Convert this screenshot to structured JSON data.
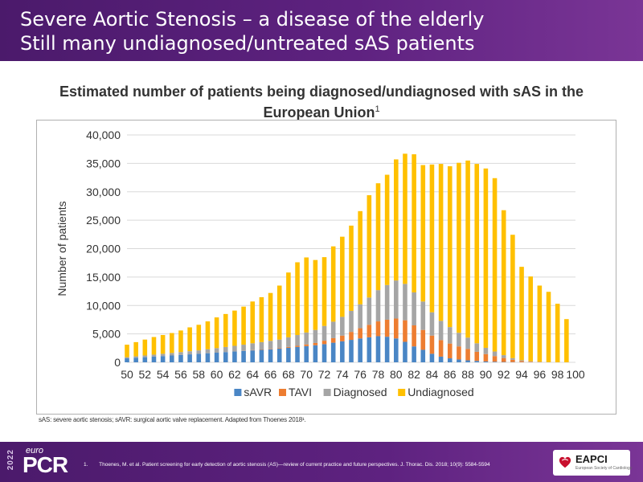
{
  "header": {
    "line1": "Severe Aortic Stenosis – a disease of the elderly",
    "line2": "Still many undiagnosed/untreated sAS patients"
  },
  "subtitle": {
    "line1": "Estimated number of patients being diagnosed/undiagnosed with sAS in the",
    "line2": "European Union",
    "sup": "1"
  },
  "chart_data": {
    "type": "bar",
    "stacked": true,
    "x": [
      50,
      51,
      52,
      53,
      54,
      55,
      56,
      57,
      58,
      59,
      60,
      61,
      62,
      63,
      64,
      65,
      66,
      67,
      68,
      69,
      70,
      71,
      72,
      73,
      74,
      75,
      76,
      77,
      78,
      79,
      80,
      81,
      82,
      83,
      84,
      85,
      86,
      87,
      88,
      89,
      90,
      91,
      92,
      93,
      94,
      95,
      96,
      97,
      98,
      99
    ],
    "x_tick_labels": [
      "50",
      "52",
      "54",
      "56",
      "58",
      "60",
      "62",
      "64",
      "66",
      "68",
      "70",
      "72",
      "74",
      "76",
      "78",
      "80",
      "82",
      "84",
      "86",
      "88",
      "90",
      "92",
      "94",
      "96",
      "98",
      "100"
    ],
    "x_tick_values": [
      50,
      52,
      54,
      56,
      58,
      60,
      62,
      64,
      66,
      68,
      70,
      72,
      74,
      76,
      78,
      80,
      82,
      84,
      86,
      88,
      90,
      92,
      94,
      96,
      98,
      100
    ],
    "ylabel": "Number of patients",
    "ylim": [
      0,
      40000
    ],
    "y_ticks": [
      0,
      5000,
      10000,
      15000,
      20000,
      25000,
      30000,
      35000,
      40000
    ],
    "y_tick_labels": [
      "0",
      "5,000",
      "10,000",
      "15,000",
      "20,000",
      "25,000",
      "30,000",
      "35,000",
      "40,000"
    ],
    "grid": true,
    "legend_position": "bottom",
    "series": [
      {
        "name": "sAVR",
        "color": "#4a86c5",
        "values": [
          700,
          800,
          900,
          1000,
          1100,
          1200,
          1300,
          1400,
          1500,
          1600,
          1700,
          1800,
          1900,
          2000,
          2100,
          2200,
          2300,
          2400,
          2550,
          2700,
          2850,
          3000,
          3200,
          3450,
          3700,
          3950,
          4200,
          4400,
          4600,
          4500,
          4200,
          3600,
          2800,
          2200,
          1500,
          1000,
          700,
          500,
          350,
          250,
          150,
          100,
          60,
          40,
          20,
          10,
          0,
          0,
          0,
          0
        ]
      },
      {
        "name": "TAVI",
        "color": "#ed7d31",
        "values": [
          0,
          0,
          0,
          0,
          0,
          0,
          0,
          0,
          0,
          0,
          0,
          0,
          0,
          0,
          50,
          60,
          80,
          100,
          150,
          200,
          300,
          400,
          600,
          800,
          1000,
          1400,
          1800,
          2200,
          2600,
          3000,
          3500,
          3800,
          3700,
          3500,
          3200,
          2900,
          2600,
          2300,
          2000,
          1600,
          1300,
          1000,
          700,
          400,
          200,
          100,
          50,
          0,
          0,
          0
        ]
      },
      {
        "name": "Diagnosed",
        "color": "#a5a5a5",
        "values": [
          200,
          250,
          300,
          350,
          400,
          450,
          500,
          550,
          600,
          700,
          800,
          900,
          1000,
          1100,
          1200,
          1300,
          1400,
          1500,
          1700,
          1900,
          2100,
          2300,
          2600,
          2900,
          3300,
          3700,
          4200,
          4800,
          5500,
          6100,
          6700,
          6400,
          5800,
          5000,
          4100,
          3400,
          2900,
          2400,
          2000,
          1500,
          1100,
          800,
          500,
          300,
          150,
          80,
          40,
          20,
          0,
          0
        ]
      },
      {
        "name": "Undiagnosed",
        "color": "#ffc000",
        "values": [
          2200,
          2500,
          2800,
          3100,
          3300,
          3500,
          3800,
          4200,
          4500,
          4900,
          5400,
          5800,
          6200,
          6700,
          7350,
          7900,
          8420,
          9500,
          11400,
          12800,
          13200,
          12300,
          12100,
          13250,
          14100,
          15000,
          16400,
          18000,
          18800,
          19400,
          21300,
          22900,
          24300,
          24000,
          26000,
          27600,
          28300,
          29900,
          31150,
          31550,
          31550,
          30500,
          25500,
          21700,
          16430,
          14910,
          13410,
          12380,
          10300,
          7600
        ]
      }
    ]
  },
  "footnote": "sAS: severe aortic stenosis; sAVR: surgical aortic valve replacement. Adapted from Thoenes 2018¹.",
  "reference": {
    "number": "1.",
    "text": "Thoenes, M. et al. Patient screening for early detection of aortic stenosis (AS)—review of current practice and future perspectives. J. Thorac. Dis. 2018; 10(9): 5584-5594"
  },
  "footer": {
    "year": "2022",
    "brand_small": "euro",
    "brand_large": "PCR",
    "partner_logo": "EAPCI",
    "partner_sub": "European Society of Cardiology"
  },
  "icons": {
    "partner": "heart-icon"
  }
}
